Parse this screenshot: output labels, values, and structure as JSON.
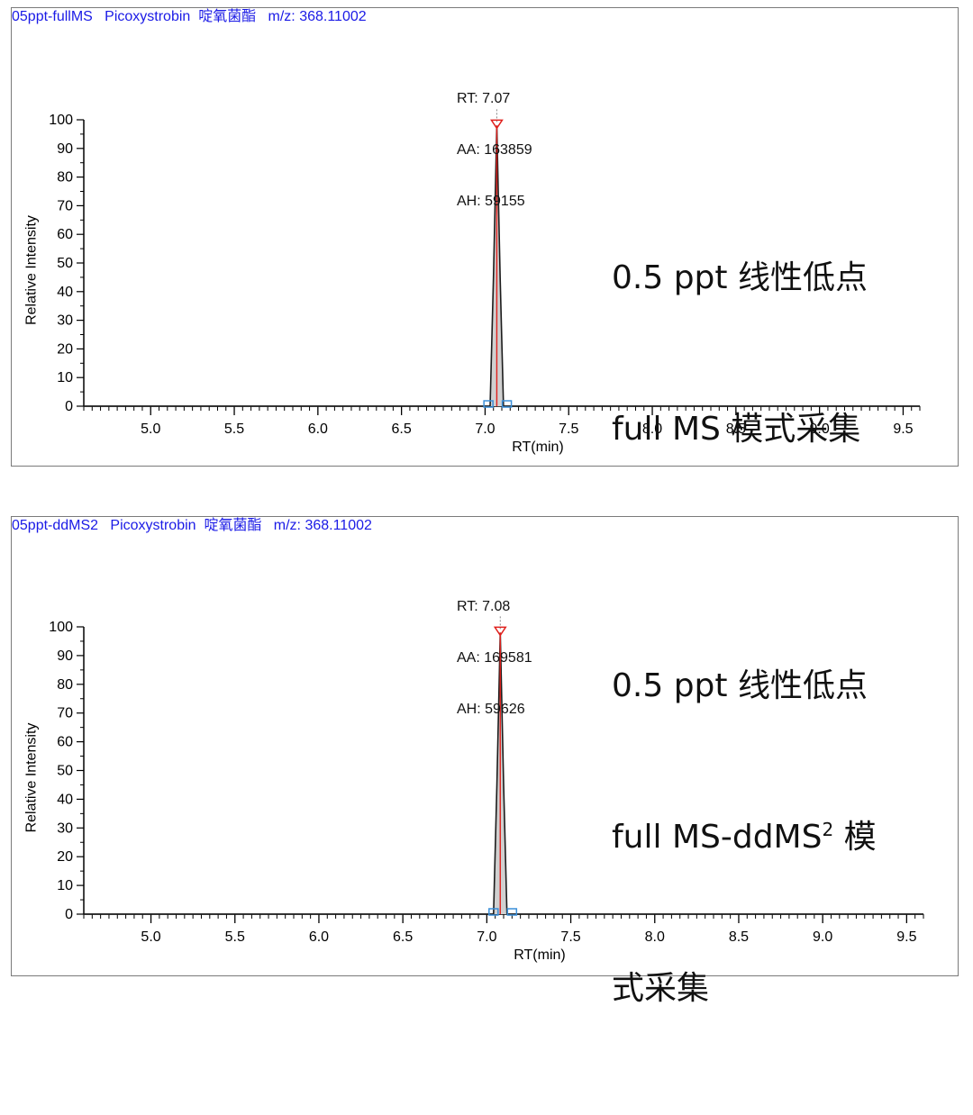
{
  "chart_data": [
    {
      "type": "line",
      "title": "05ppt-fullMS   Picoxystrobin  啶氧菌酯   m/z: 368.11002",
      "xlabel": "RT(min)",
      "ylabel": "Relative Intensity",
      "xlim": [
        4.6,
        9.6
      ],
      "ylim": [
        0,
        100
      ],
      "x_ticks": [
        "5.0",
        "5.5",
        "6.0",
        "6.5",
        "7.0",
        "7.5",
        "8.0",
        "8.5",
        "9.0",
        "9.5"
      ],
      "y_ticks": [
        "0",
        "10",
        "20",
        "30",
        "40",
        "50",
        "60",
        "70",
        "80",
        "90",
        "100"
      ],
      "series": [
        {
          "x": [
            4.6,
            7.03,
            7.05,
            7.07,
            7.09,
            7.11,
            9.6
          ],
          "y": [
            0,
            0,
            45,
            98,
            45,
            0,
            0
          ]
        }
      ],
      "peak": {
        "rt": 7.07,
        "rt_label": "RT: 7.07",
        "aa_label": "AA: 163859",
        "ah_label": "AH: 59155",
        "start": 7.02,
        "end": 7.13
      },
      "note_lines": [
        "0.5 ppt 线性低点",
        "full MS 模式采集"
      ],
      "colors": {
        "title": "#1a1ae6",
        "trace": "#1c1c1c",
        "fill": "#d0d0d0",
        "peak_marker": "#e0201c",
        "baseline_marker": "#3b8fd9"
      }
    },
    {
      "type": "line",
      "title": "05ppt-ddMS2   Picoxystrobin  啶氧菌酯   m/z: 368.11002",
      "xlabel": "RT(min)",
      "ylabel": "Relative Intensity",
      "xlim": [
        4.6,
        9.6
      ],
      "ylim": [
        0,
        100
      ],
      "x_ticks": [
        "5.0",
        "5.5",
        "6.0",
        "6.5",
        "7.0",
        "7.5",
        "8.0",
        "8.5",
        "9.0",
        "9.5"
      ],
      "y_ticks": [
        "0",
        "10",
        "20",
        "30",
        "40",
        "50",
        "60",
        "70",
        "80",
        "90",
        "100"
      ],
      "series": [
        {
          "x": [
            4.6,
            7.04,
            7.06,
            7.08,
            7.1,
            7.12,
            9.6
          ],
          "y": [
            0,
            0,
            45,
            98,
            45,
            0,
            0
          ]
        }
      ],
      "peak": {
        "rt": 7.08,
        "rt_label": "RT: 7.08",
        "aa_label": "AA: 169581",
        "ah_label": "AH: 59626",
        "start": 7.04,
        "end": 7.15
      },
      "note_lines": [
        "0.5 ppt 线性低点",
        "full MS-ddMS",
        "2",
        " 模",
        "式采集"
      ],
      "colors": {
        "title": "#1a1ae6",
        "trace": "#1c1c1c",
        "fill": "#d0d0d0",
        "peak_marker": "#e0201c",
        "baseline_marker": "#3b8fd9"
      }
    }
  ]
}
